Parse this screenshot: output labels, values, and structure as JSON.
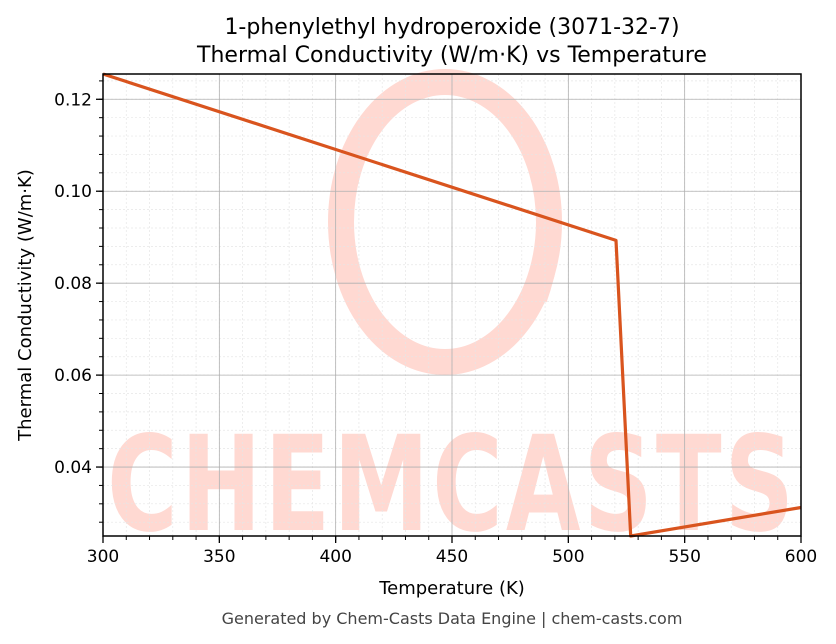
{
  "chart_data": {
    "type": "line",
    "title_line1": "1-phenylethyl hydroperoxide (3071-32-7)",
    "title_line2": "Thermal Conductivity (W/m·K) vs Temperature",
    "xlabel": "Temperature (K)",
    "ylabel": "Thermal Conductivity (W/m·K)",
    "xlim": [
      300,
      600
    ],
    "ylim": [
      0.025,
      0.1255
    ],
    "xticks": [
      300,
      350,
      400,
      450,
      500,
      550,
      600
    ],
    "xtick_labels": [
      "300",
      "350",
      "400",
      "450",
      "500",
      "550",
      "600"
    ],
    "yticks": [
      0.04,
      0.06,
      0.08,
      0.1,
      0.12
    ],
    "ytick_labels": [
      "0.04",
      "0.06",
      "0.08",
      "0.10",
      "0.12"
    ],
    "grid": true,
    "series": [
      {
        "color": "#d9541e",
        "x": [
          300,
          520.5,
          526.8,
          600
        ],
        "y": [
          0.1255,
          0.0893,
          0.025,
          0.0312
        ]
      }
    ]
  },
  "watermark": {
    "text": "CHEMCASTS",
    "color": "#ffd9d2"
  },
  "footer": "Generated by Chem-Casts Data Engine | chem-casts.com"
}
